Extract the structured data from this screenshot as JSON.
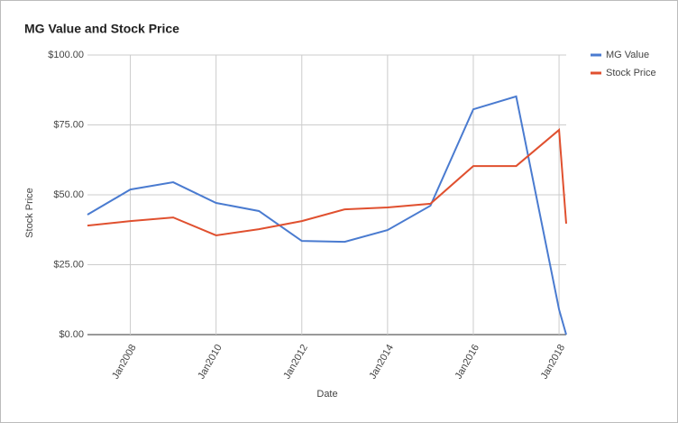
{
  "chart_data": {
    "type": "line",
    "title": "MG Value and Stock Price",
    "x_label": "Date",
    "y_label": "Stock Price",
    "x": [
      "2007-01",
      "2008-01",
      "2009-01",
      "2010-01",
      "2011-01",
      "2012-01",
      "2013-01",
      "2014-01",
      "2015-01",
      "2016-01",
      "2017-01",
      "2018-01",
      "2018-03"
    ],
    "series": [
      {
        "name": "MG Value",
        "color": "#4a7bd0",
        "values": [
          42.9,
          51.9,
          54.5,
          47.1,
          44.2,
          33.5,
          33.2,
          37.4,
          46.1,
          80.6,
          85.2,
          9.0,
          0
        ]
      },
      {
        "name": "Stock Price",
        "color": "#e0502f",
        "values": [
          39.0,
          40.6,
          41.9,
          35.5,
          37.7,
          40.6,
          44.8,
          45.5,
          46.8,
          60.3,
          60.3,
          73.2,
          39.7
        ]
      }
    ],
    "xlim": [
      "2007-01",
      "2018-03"
    ],
    "xticks": [
      {
        "value": "2008-01",
        "label": "Jan2008"
      },
      {
        "value": "2010-01",
        "label": "Jan2010"
      },
      {
        "value": "2012-01",
        "label": "Jan2012"
      },
      {
        "value": "2014-01",
        "label": "Jan2014"
      },
      {
        "value": "2016-01",
        "label": "Jan2016"
      },
      {
        "value": "2018-01",
        "label": "Jan2018"
      }
    ],
    "ylim": [
      0,
      100
    ],
    "yticks": [
      {
        "value": 0,
        "label": "$0.00"
      },
      {
        "value": 25,
        "label": "$25.00"
      },
      {
        "value": 50,
        "label": "$50.00"
      },
      {
        "value": 75,
        "label": "$75.00"
      },
      {
        "value": 100,
        "label": "$100.00"
      }
    ],
    "grid": true,
    "legend": "right"
  }
}
